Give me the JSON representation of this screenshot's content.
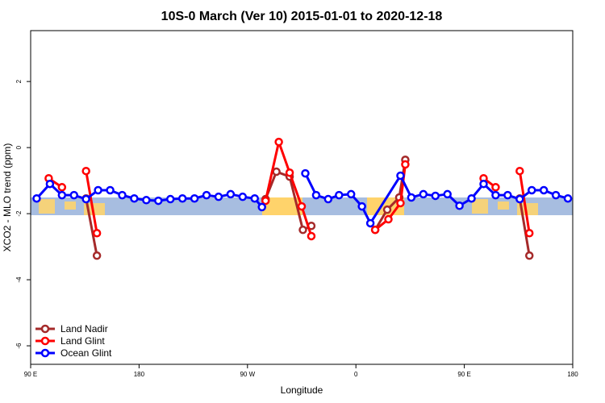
{
  "chart_data": {
    "type": "line",
    "title": "10S-0 March (Ver 10)   2015-01-01 to 2020-12-18",
    "xlabel": "Longitude",
    "ylabel": "XCO2 - MLO trend (ppm)",
    "xlim": [
      90,
      540
    ],
    "ylim": [
      -6.56,
      3.54
    ],
    "xticks": [
      {
        "value": 90,
        "label": "90 E"
      },
      180,
      {
        "value": 270,
        "label": "90 W"
      },
      {
        "value": 360,
        "label": "0"
      },
      {
        "value": 450,
        "label": "90 E"
      },
      {
        "value": 540,
        "label": "180"
      }
    ],
    "yticks": [
      2,
      0,
      -2,
      -4,
      -6
    ],
    "legend": "bottom-left",
    "series": [
      {
        "name": "Land Nadir",
        "color": "#a52a2a",
        "x": [
          136,
          145,
          null,
          285,
          294,
          305,
          316,
          323,
          null,
          376,
          386,
          396,
          401,
          null,
          496,
          504
        ],
        "values": [
          -1.54,
          -3.27,
          null,
          -1.56,
          -0.73,
          -0.88,
          -2.49,
          -2.37,
          null,
          -2.49,
          -1.88,
          -1.51,
          -0.37,
          null,
          -1.54,
          -3.27
        ]
      },
      {
        "name": "Land Glint",
        "color": "#ff0000",
        "x": [
          105,
          116,
          null,
          136,
          145,
          null,
          285,
          296,
          305,
          315,
          323,
          null,
          376,
          387,
          397,
          401,
          null,
          466,
          476,
          null,
          496,
          504
        ],
        "values": [
          -0.93,
          -1.2,
          null,
          -0.71,
          -2.59,
          null,
          -1.61,
          0.17,
          -0.76,
          -1.78,
          -2.68,
          null,
          -2.49,
          -2.17,
          -1.68,
          -0.51,
          null,
          -0.93,
          -1.2,
          null,
          -0.71,
          -2.59
        ]
      },
      {
        "name": "Ocean Glint",
        "color": "#0000ff",
        "x": [
          95,
          106,
          116,
          126,
          136,
          146,
          156,
          166,
          176,
          186,
          196,
          206,
          216,
          226,
          236,
          246,
          256,
          266,
          276,
          282,
          null,
          318,
          327,
          337,
          346,
          356,
          365,
          372,
          397,
          406,
          416,
          426,
          436,
          446,
          456,
          466,
          476,
          486,
          496,
          506,
          516,
          526,
          536
        ],
        "values": [
          -1.54,
          -1.1,
          -1.44,
          -1.44,
          -1.56,
          -1.29,
          -1.29,
          -1.44,
          -1.54,
          -1.59,
          -1.61,
          -1.56,
          -1.54,
          -1.54,
          -1.44,
          -1.49,
          -1.41,
          -1.49,
          -1.54,
          -1.8,
          null,
          -0.78,
          -1.44,
          -1.56,
          -1.44,
          -1.41,
          -1.78,
          -2.29,
          -0.85,
          -1.51,
          -1.41,
          -1.46,
          -1.41,
          -1.76,
          -1.54,
          -1.1,
          -1.44,
          -1.44,
          -1.56,
          -1.29,
          -1.29,
          -1.44,
          -1.54
        ]
      }
    ]
  }
}
